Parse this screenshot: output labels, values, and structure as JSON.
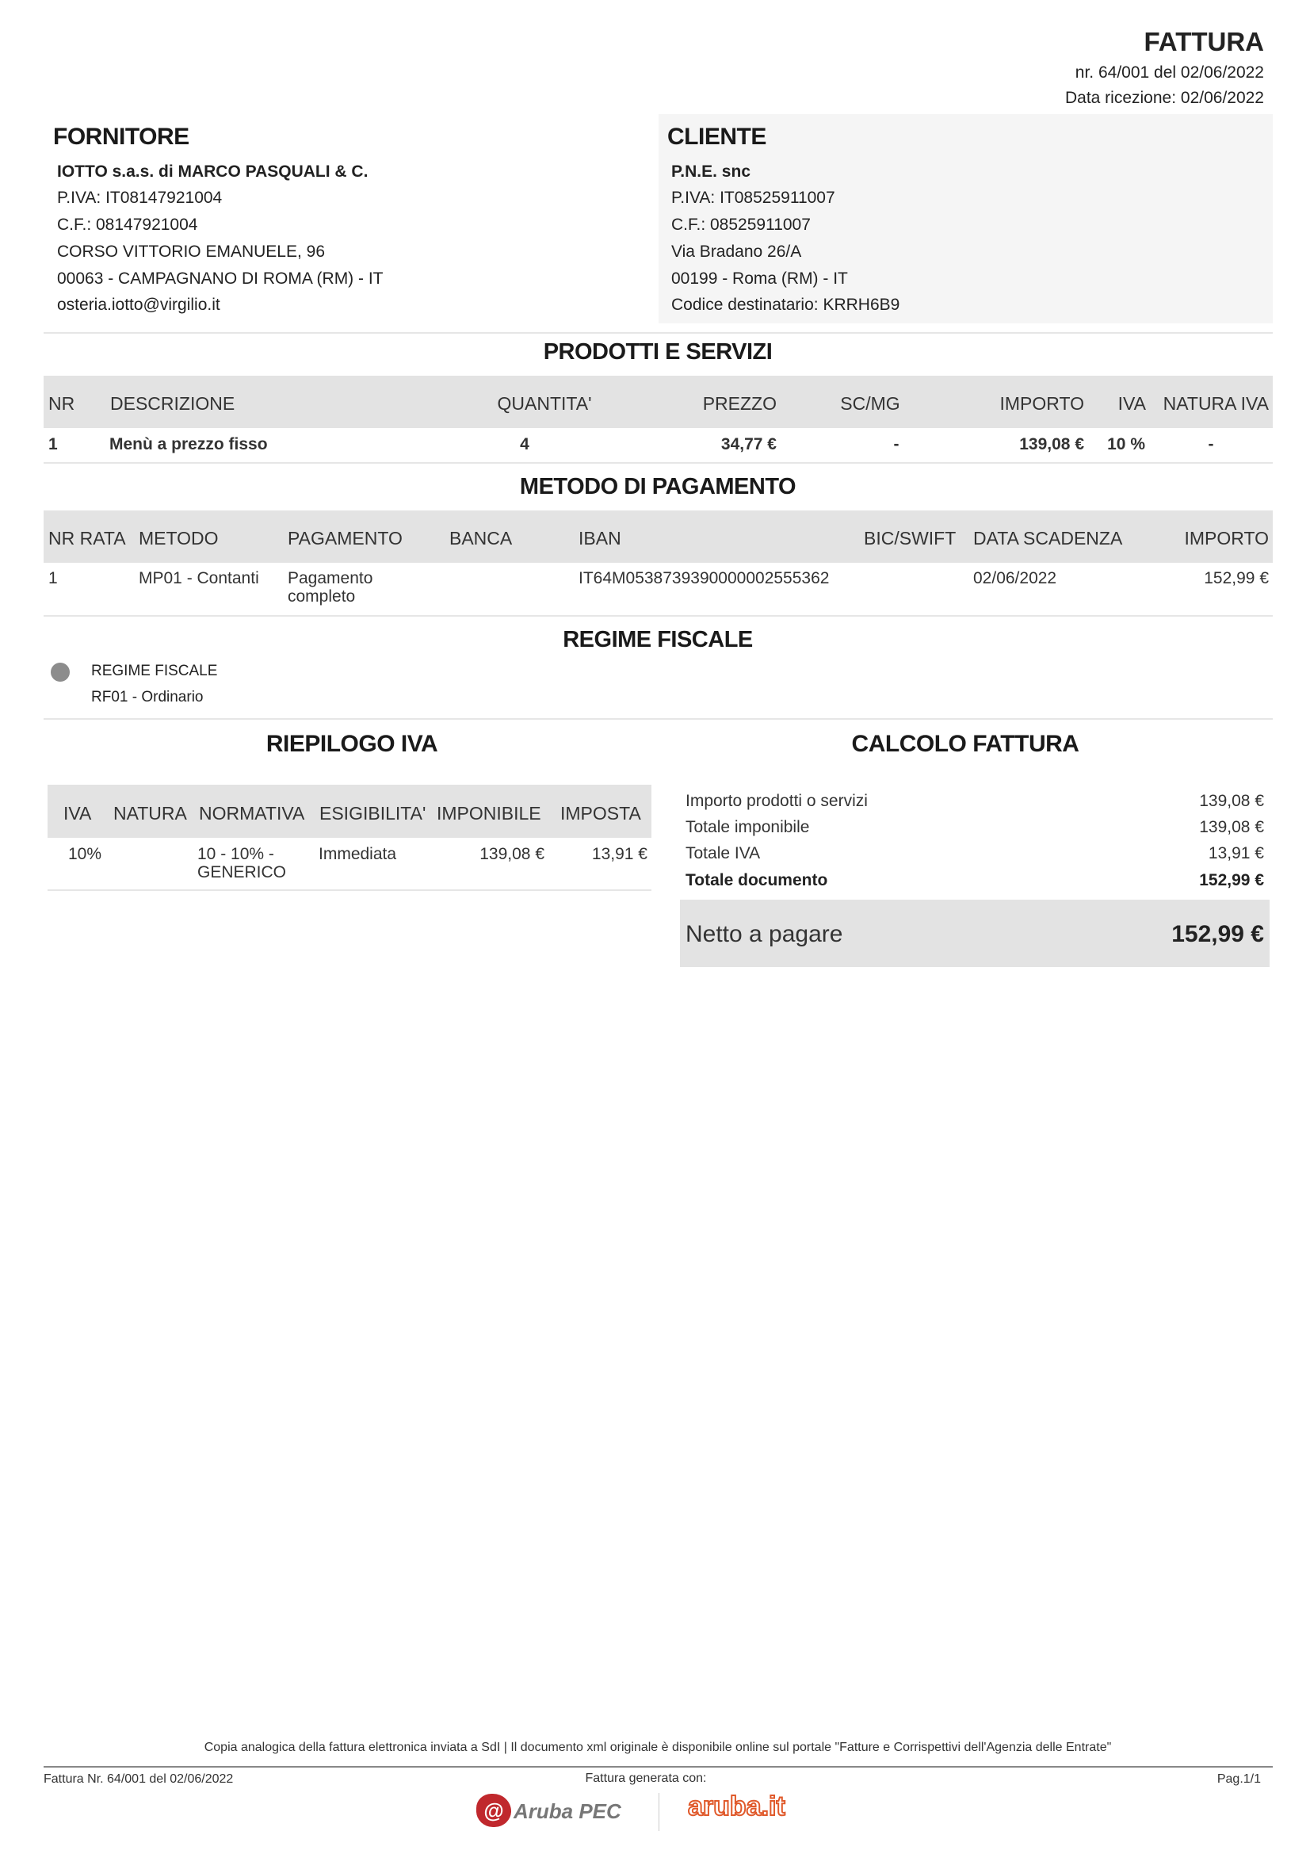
{
  "header": {
    "title": "FATTURA",
    "number_line": "nr. 64/001 del 02/06/2022",
    "received_line": "Data ricezione: 02/06/2022"
  },
  "supplier": {
    "heading": "FORNITORE",
    "name": "IOTTO s.a.s. di MARCO PASQUALI & C.",
    "piva": "P.IVA: IT08147921004",
    "cf": "C.F.: 08147921004",
    "address": "CORSO VITTORIO EMANUELE, 96",
    "city": "00063 - CAMPAGNANO DI ROMA (RM) - IT",
    "email": "osteria.iotto@virgilio.it"
  },
  "client": {
    "heading": "CLIENTE",
    "name": "P.N.E. snc",
    "piva": "P.IVA: IT08525911007",
    "cf": "C.F.: 08525911007",
    "address": "Via Bradano 26/A",
    "city": "00199 - Roma (RM) - IT",
    "code": "Codice destinatario: KRRH6B9"
  },
  "products": {
    "heading": "PRODOTTI E SERVIZI",
    "columns": [
      "NR",
      "DESCRIZIONE",
      "QUANTITA'",
      "PREZZO",
      "SC/MG",
      "IMPORTO",
      "IVA",
      "NATURA IVA"
    ],
    "rows": [
      [
        "1",
        "Menù a prezzo fisso",
        "4",
        "34,77 €",
        "-",
        "139,08 €",
        "10 %",
        "-"
      ]
    ]
  },
  "payment": {
    "heading": "METODO DI PAGAMENTO",
    "columns": [
      "NR RATA",
      "METODO",
      "PAGAMENTO",
      "BANCA",
      "IBAN",
      "BIC/SWIFT",
      "DATA SCADENZA",
      "IMPORTO"
    ],
    "rows": [
      [
        "1",
        "MP01 - Contanti",
        "Pagamento completo",
        "",
        "IT64M0538739390000002555362",
        "",
        "02/06/2022",
        "152,99 €"
      ]
    ]
  },
  "regime": {
    "heading": "REGIME FISCALE",
    "label": "REGIME FISCALE",
    "value": "RF01 - Ordinario"
  },
  "vat_summary": {
    "heading": "RIEPILOGO IVA",
    "columns": [
      "IVA",
      "NATURA",
      "NORMATIVA",
      "ESIGIBILITA'",
      "IMPONIBILE",
      "IMPOSTA"
    ],
    "rows": [
      [
        "10%",
        "",
        "10 - 10% - GENERICO",
        "Immediata",
        "139,08 €",
        "13,91 €"
      ]
    ]
  },
  "calc": {
    "heading": "CALCOLO FATTURA",
    "rows": [
      {
        "label": "Importo prodotti o servizi",
        "value": "139,08 €"
      },
      {
        "label": "Totale imponibile",
        "value": "139,08 €"
      },
      {
        "label": "Totale IVA",
        "value": "13,91 €"
      },
      {
        "label": "Totale documento",
        "value": "152,99 €"
      }
    ],
    "net_label": "Netto a pagare",
    "net_value": "152,99 €"
  },
  "footer": {
    "note": "Copia analogica della fattura elettronica inviata a SdI | Il documento xml originale è disponibile online sul portale \"Fatture e Corrispettivi dell'Agenzia delle Entrate\"",
    "invoice_ref": "Fattura Nr. 64/001 del 02/06/2022",
    "generated_with": "Fattura generata con:",
    "page": "Pag.1/1",
    "logo1": "Aruba PEC",
    "logo2": "aruba.it"
  },
  "colors": {
    "header_bg": "#e3e3e3",
    "client_bg": "#f5f5f5",
    "logo_red": "#c0282d",
    "logo_orange": "#e0592a"
  }
}
